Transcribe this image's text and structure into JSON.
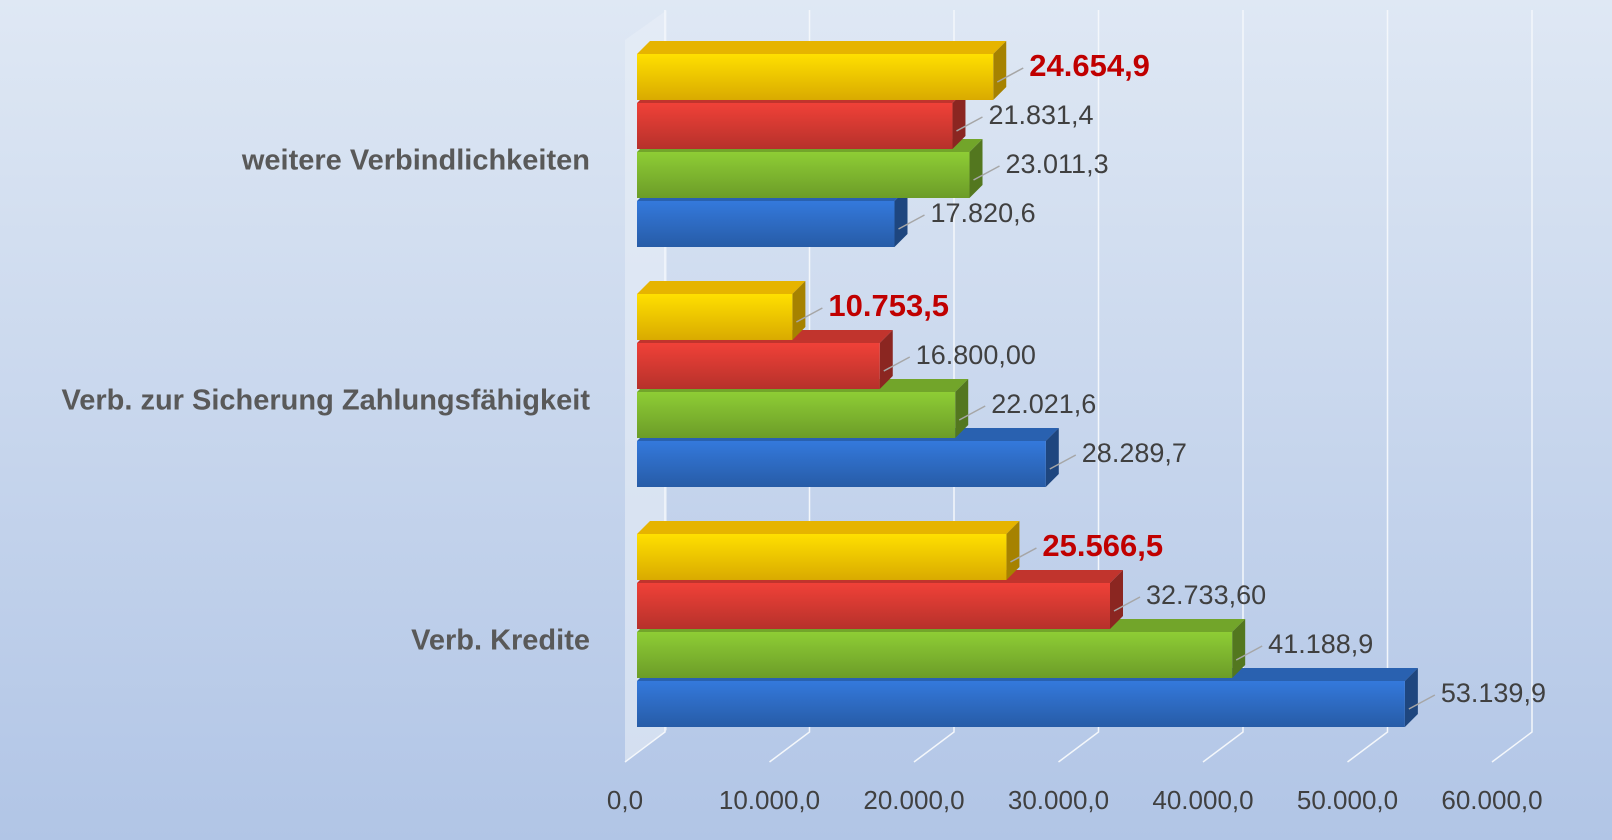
{
  "chart_data": {
    "type": "bar3d-horizontal",
    "categories": [
      "Verb. Kredite",
      "Verb. zur Sicherung Zahlungsfähigkeit",
      "weitere Verbindlichkeiten"
    ],
    "series": [
      {
        "color": "#2e6cc4",
        "label_color": "#404040",
        "label_bold": false,
        "values": [
          53139.9,
          28289.7,
          17820.6
        ],
        "value_labels": [
          "53.139,9",
          "28.289,7",
          "17.820,6"
        ]
      },
      {
        "color": "#7fb72f",
        "label_color": "#404040",
        "label_bold": false,
        "values": [
          41188.9,
          22021.6,
          23011.3
        ],
        "value_labels": [
          "41.188,9",
          "22.021,6",
          "23.011,3"
        ]
      },
      {
        "color": "#d63a32",
        "label_color": "#404040",
        "label_bold": false,
        "values": [
          32733.6,
          16800,
          21831.4
        ],
        "value_labels": [
          "32.733,60",
          "16.800,00",
          "21.831,4"
        ]
      },
      {
        "color": "#ffc800",
        "label_color": "#c00000",
        "label_bold": true,
        "values": [
          25566.5,
          10753.5,
          24654.9
        ],
        "value_labels": [
          "25.566,5",
          "10.753,5",
          "24.654,9"
        ]
      }
    ],
    "xlim": [
      0,
      60000
    ],
    "xticks": [
      {
        "value": 0,
        "label": "0,0"
      },
      {
        "value": 10000,
        "label": "10.000,0"
      },
      {
        "value": 20000,
        "label": "20.000,0"
      },
      {
        "value": 30000,
        "label": "30.000,0"
      },
      {
        "value": 40000,
        "label": "40.000,0"
      },
      {
        "value": 50000,
        "label": "50.000,0"
      },
      {
        "value": 60000,
        "label": "60.000,0"
      }
    ],
    "grid": true
  }
}
